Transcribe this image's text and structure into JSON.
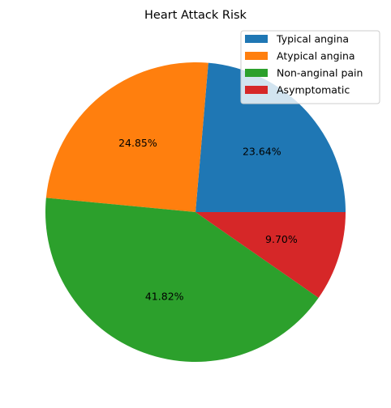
{
  "chart_data": {
    "type": "pie",
    "title": "Heart Attack Risk",
    "categories": [
      "Typical angina",
      "Atypical angina",
      "Non-anginal pain",
      "Asymptomatic"
    ],
    "values": [
      23.64,
      24.85,
      41.82,
      9.7
    ],
    "labels": [
      "23.64%",
      "24.85%",
      "41.82%",
      "9.70%"
    ],
    "colors": [
      "#1f77b4",
      "#ff7f0e",
      "#2ca02c",
      "#d62728"
    ],
    "start_angle_deg": 0,
    "direction": "counterclockwise",
    "legend_position": "top-right"
  }
}
